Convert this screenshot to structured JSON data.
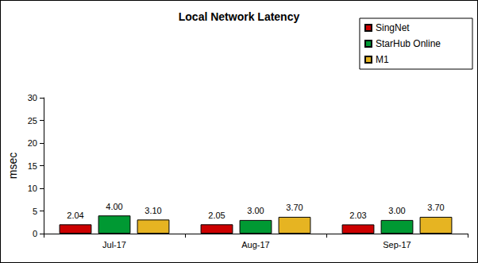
{
  "chart_data": {
    "type": "bar",
    "title": "Local Network Latency",
    "y_label": "msec",
    "categories": [
      "Jul-17",
      "Aug-17",
      "Sep-17"
    ],
    "series": [
      {
        "name": "SingNet",
        "color": "#cc0000",
        "values": [
          2.04,
          2.05,
          2.03
        ],
        "value_labels": [
          "2.04",
          "2.05",
          "2.03"
        ]
      },
      {
        "name": "StarHub Online",
        "color": "#009933",
        "values": [
          4.0,
          3.0,
          3.0
        ],
        "value_labels": [
          "4.00",
          "3.00",
          "3.00"
        ]
      },
      {
        "name": "M1",
        "color": "#e6b422",
        "values": [
          3.1,
          3.7,
          3.7
        ],
        "value_labels": [
          "3.10",
          "3.70",
          "3.70"
        ]
      }
    ],
    "ylim": [
      0,
      30
    ],
    "yticks": [
      0,
      5,
      10,
      15,
      20,
      25,
      30
    ],
    "grid": false,
    "legend": "top-right",
    "data_labels": true
  }
}
